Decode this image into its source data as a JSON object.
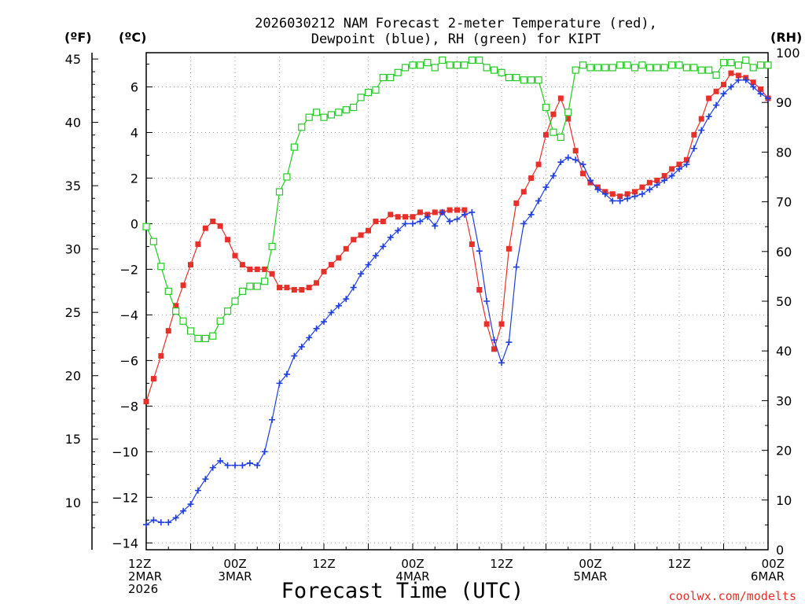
{
  "chart_data": {
    "type": "line",
    "title_line1": "2026030212 NAM Forecast 2-meter Temperature (red),",
    "title_line2": "Dewpoint (blue), RH (green) for KIPT",
    "xlabel": "Forecast Time (UTC)",
    "watermark": "coolwx.com/modelts",
    "axis_f_label": "(ºF)",
    "axis_c_label": "(ºC)",
    "axis_rh_label": "(RH)",
    "xlim": [
      0,
      84
    ],
    "c_lim": [
      -14.3,
      7.5
    ],
    "rh_lim": [
      0,
      100
    ],
    "f_ticks": [
      10,
      15,
      20,
      25,
      30,
      35,
      40,
      45
    ],
    "c_ticks": [
      -14,
      -12,
      -10,
      -8,
      -6,
      -4,
      -2,
      0,
      2,
      4,
      6
    ],
    "rh_ticks": [
      0,
      10,
      20,
      30,
      40,
      50,
      60,
      70,
      80,
      90,
      100
    ],
    "x_ticks": [
      {
        "hour": 0,
        "lines": [
          "12Z",
          "2MAR",
          "2026"
        ]
      },
      {
        "hour": 12,
        "lines": [
          "00Z",
          "3MAR"
        ]
      },
      {
        "hour": 24,
        "lines": [
          "12Z"
        ]
      },
      {
        "hour": 36,
        "lines": [
          "00Z",
          "4MAR"
        ]
      },
      {
        "hour": 48,
        "lines": [
          "12Z"
        ]
      },
      {
        "hour": 60,
        "lines": [
          "00Z",
          "5MAR"
        ]
      },
      {
        "hour": 72,
        "lines": [
          "12Z"
        ]
      },
      {
        "hour": 84,
        "lines": [
          "00Z",
          "6MAR"
        ]
      }
    ],
    "colors": {
      "temperature": "#e8302a",
      "dewpoint": "#1f3ee0",
      "rh": "#22cc22",
      "grid": "#999999"
    },
    "series": [
      {
        "name": "Temperature (°C)",
        "key": "temperature",
        "x": [
          0,
          1,
          2,
          3,
          4,
          5,
          6,
          7,
          8,
          9,
          10,
          11,
          12,
          13,
          14,
          15,
          16,
          17,
          18,
          19,
          20,
          21,
          22,
          23,
          24,
          25,
          26,
          27,
          28,
          29,
          30,
          31,
          32,
          33,
          34,
          35,
          36,
          37,
          38,
          39,
          40,
          41,
          42,
          43,
          44,
          45,
          46,
          47,
          48,
          49,
          50,
          51,
          52,
          53,
          54,
          55,
          56,
          57,
          58,
          59,
          60,
          61,
          62,
          63,
          64,
          65,
          66,
          67,
          68,
          69,
          70,
          71,
          72,
          73,
          74,
          75,
          76,
          77,
          78,
          79,
          80,
          81,
          82,
          83,
          84
        ],
        "values": [
          -7.8,
          -6.8,
          -5.8,
          -4.7,
          -3.6,
          -2.7,
          -1.8,
          -0.9,
          -0.2,
          0.1,
          -0.1,
          -0.7,
          -1.4,
          -1.8,
          -2.0,
          -2.0,
          -2.0,
          -2.2,
          -2.8,
          -2.8,
          -2.9,
          -2.9,
          -2.8,
          -2.6,
          -2.1,
          -1.8,
          -1.5,
          -1.1,
          -0.7,
          -0.5,
          -0.3,
          0.1,
          0.1,
          0.4,
          0.3,
          0.3,
          0.3,
          0.5,
          0.4,
          0.5,
          0.5,
          0.6,
          0.6,
          0.6,
          -0.9,
          -2.9,
          -4.4,
          -5.5,
          -4.4,
          -1.1,
          0.9,
          1.4,
          2.0,
          2.6,
          3.9,
          4.8,
          5.5,
          4.6,
          3.2,
          2.2,
          1.8,
          1.6,
          1.4,
          1.3,
          1.2,
          1.3,
          1.4,
          1.6,
          1.8,
          1.9,
          2.1,
          2.4,
          2.6,
          2.8,
          3.9,
          4.6,
          5.5,
          5.8,
          6.1,
          6.6,
          6.5,
          6.4,
          6.2,
          5.9,
          5.5
        ]
      },
      {
        "name": "Dewpoint (°C)",
        "key": "dewpoint",
        "x": [
          0,
          1,
          2,
          3,
          4,
          5,
          6,
          7,
          8,
          9,
          10,
          11,
          12,
          13,
          14,
          15,
          16,
          17,
          18,
          19,
          20,
          21,
          22,
          23,
          24,
          25,
          26,
          27,
          28,
          29,
          30,
          31,
          32,
          33,
          34,
          35,
          36,
          37,
          38,
          39,
          40,
          41,
          42,
          43,
          44,
          45,
          46,
          47,
          48,
          49,
          50,
          51,
          52,
          53,
          54,
          55,
          56,
          57,
          58,
          59,
          60,
          61,
          62,
          63,
          64,
          65,
          66,
          67,
          68,
          69,
          70,
          71,
          72,
          73,
          74,
          75,
          76,
          77,
          78,
          79,
          80,
          81,
          82,
          83,
          84
        ],
        "values": [
          -13.2,
          -13.0,
          -13.1,
          -13.1,
          -12.9,
          -12.6,
          -12.3,
          -11.7,
          -11.2,
          -10.7,
          -10.4,
          -10.6,
          -10.6,
          -10.6,
          -10.5,
          -10.6,
          -10.0,
          -8.6,
          -7.0,
          -6.6,
          -5.8,
          -5.4,
          -5.0,
          -4.6,
          -4.3,
          -3.9,
          -3.6,
          -3.3,
          -2.8,
          -2.2,
          -1.8,
          -1.4,
          -1.0,
          -0.6,
          -0.3,
          0.0,
          0.0,
          0.1,
          0.3,
          -0.1,
          0.5,
          0.1,
          0.2,
          0.4,
          0.5,
          -1.2,
          -3.4,
          -5.1,
          -6.1,
          -5.2,
          -1.9,
          0.0,
          0.4,
          1.0,
          1.6,
          2.1,
          2.7,
          2.9,
          2.8,
          2.6,
          1.9,
          1.5,
          1.3,
          1.0,
          1.0,
          1.1,
          1.2,
          1.3,
          1.5,
          1.7,
          1.9,
          2.1,
          2.4,
          2.6,
          3.3,
          4.1,
          4.7,
          5.2,
          5.7,
          6.0,
          6.3,
          6.3,
          6.0,
          5.7,
          5.5
        ]
      },
      {
        "name": "Relative Humidity (%)",
        "key": "rh",
        "x": [
          0,
          1,
          2,
          3,
          4,
          5,
          6,
          7,
          8,
          9,
          10,
          11,
          12,
          13,
          14,
          15,
          16,
          17,
          18,
          19,
          20,
          21,
          22,
          23,
          24,
          25,
          26,
          27,
          28,
          29,
          30,
          31,
          32,
          33,
          34,
          35,
          36,
          37,
          38,
          39,
          40,
          41,
          42,
          43,
          44,
          45,
          46,
          47,
          48,
          49,
          50,
          51,
          52,
          53,
          54,
          55,
          56,
          57,
          58,
          59,
          60,
          61,
          62,
          63,
          64,
          65,
          66,
          67,
          68,
          69,
          70,
          71,
          72,
          73,
          74,
          75,
          76,
          77,
          78,
          79,
          80,
          81,
          82,
          83,
          84
        ],
        "values": [
          65,
          62,
          57,
          52,
          48,
          46,
          44,
          42.5,
          42.5,
          43,
          46,
          48,
          50,
          52,
          53,
          53,
          54,
          61,
          72,
          75,
          81,
          85,
          87,
          88,
          87,
          87.5,
          88,
          88.5,
          89,
          91,
          92,
          92.5,
          95,
          95,
          96,
          97,
          97.5,
          97.5,
          98,
          97,
          98.5,
          97.5,
          97.5,
          97.5,
          98.5,
          98.5,
          97,
          96.5,
          96,
          95,
          95,
          94.5,
          94.5,
          94.5,
          89,
          84,
          83,
          88,
          96.5,
          97.5,
          97,
          97,
          97,
          97,
          97.5,
          97.5,
          97,
          97.5,
          97,
          97,
          97,
          97.5,
          97.5,
          97,
          97,
          96.5,
          96.5,
          95.5,
          98,
          98,
          97.5,
          98.5,
          97,
          97.5,
          97.5
        ]
      }
    ]
  }
}
